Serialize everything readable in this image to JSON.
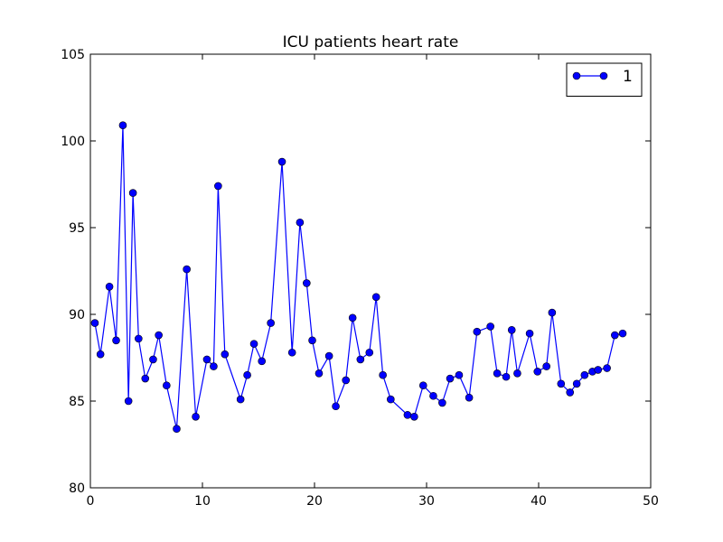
{
  "chart_data": {
    "type": "line",
    "title": "ICU patients heart rate",
    "xlabel": "",
    "ylabel": "",
    "xlim": [
      0,
      50
    ],
    "ylim": [
      80,
      105
    ],
    "xticks": [
      0,
      10,
      20,
      30,
      40,
      50
    ],
    "yticks": [
      80,
      85,
      90,
      95,
      100,
      105
    ],
    "grid": false,
    "legend_position": "top-right",
    "series": [
      {
        "name": "1",
        "color": "#0000ff",
        "x": [
          0.4,
          0.9,
          1.7,
          2.3,
          2.9,
          3.4,
          3.8,
          4.3,
          4.9,
          5.6,
          6.1,
          6.8,
          7.7,
          8.6,
          9.4,
          10.4,
          11.0,
          11.4,
          12.0,
          13.4,
          14.0,
          14.6,
          15.3,
          16.1,
          17.1,
          18.0,
          18.7,
          19.3,
          19.8,
          20.4,
          21.3,
          21.9,
          22.8,
          23.4,
          24.1,
          24.9,
          25.5,
          26.1,
          26.8,
          28.3,
          28.9,
          29.7,
          30.6,
          31.4,
          32.1,
          32.9,
          33.8,
          34.5,
          35.7,
          36.3,
          37.1,
          37.6,
          38.1,
          39.2,
          39.9,
          40.7,
          41.2,
          42.0,
          42.8,
          43.4,
          44.1,
          44.8,
          45.3,
          46.1,
          46.8,
          47.5
        ],
        "values": [
          89.5,
          87.7,
          91.6,
          88.5,
          100.9,
          85.0,
          97.0,
          88.6,
          86.3,
          87.4,
          88.8,
          85.9,
          83.4,
          92.6,
          84.1,
          87.4,
          87.0,
          97.4,
          87.7,
          85.1,
          86.5,
          88.3,
          87.3,
          89.5,
          98.8,
          87.8,
          95.3,
          91.8,
          88.5,
          86.6,
          87.6,
          84.7,
          86.2,
          89.8,
          87.4,
          87.8,
          91.0,
          86.5,
          85.1,
          84.2,
          84.1,
          85.9,
          85.3,
          84.9,
          86.3,
          86.5,
          85.2,
          89.0,
          89.3,
          86.6,
          86.4,
          89.1,
          86.6,
          88.9,
          86.7,
          87.0,
          90.1,
          86.0,
          85.5,
          86.0,
          86.5,
          86.7,
          86.8,
          86.9,
          88.8,
          88.9
        ],
        "note_removed": ""
      }
    ]
  }
}
